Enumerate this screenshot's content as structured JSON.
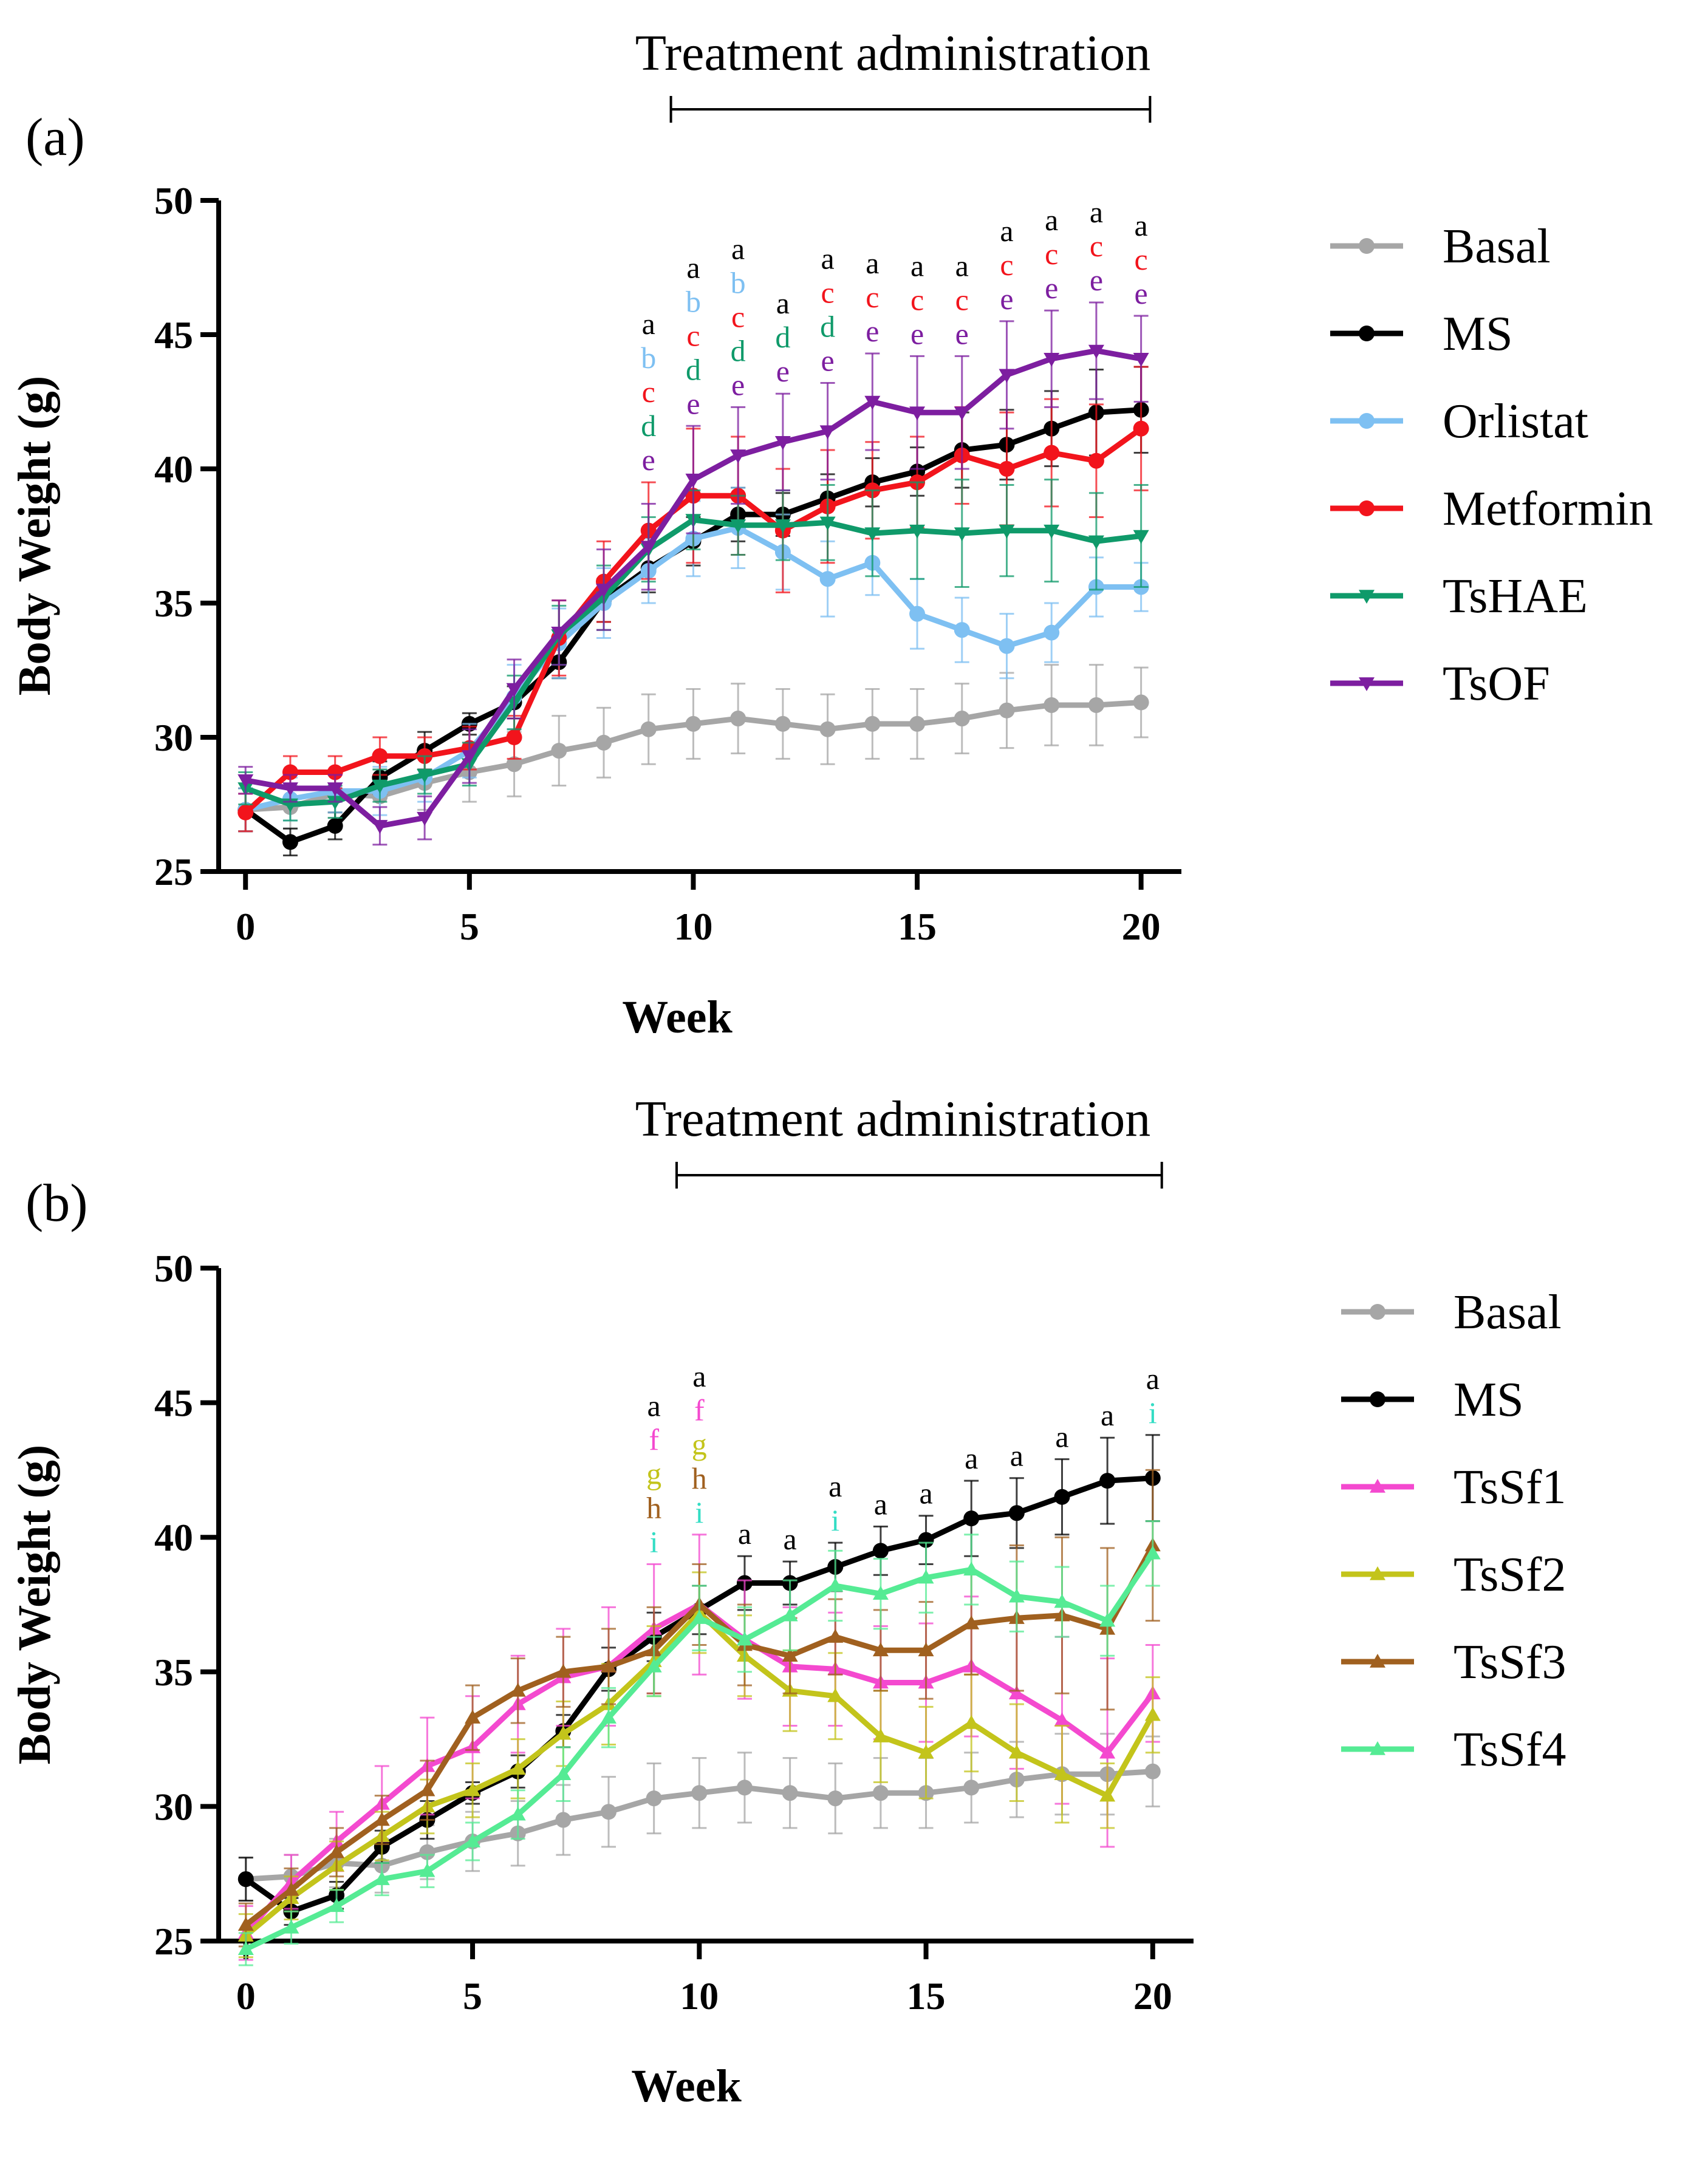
{
  "chart_data": [
    {
      "type": "line",
      "panel_label": "(a)",
      "treatment_label": "Treatment administration",
      "treatment_range": [
        9.5,
        20.2
      ],
      "xlabel": "Week",
      "ylabel": "Body Weight (g)",
      "xlim": [
        -0.6,
        20.9
      ],
      "ylim": [
        25,
        50
      ],
      "xticks": [
        0,
        5,
        10,
        15,
        20
      ],
      "yticks": [
        25,
        30,
        35,
        40,
        45,
        50
      ],
      "x": [
        0,
        1,
        2,
        3,
        4,
        5,
        6,
        7,
        8,
        9,
        10,
        11,
        12,
        13,
        14,
        15,
        16,
        17,
        18,
        19,
        20
      ],
      "series": [
        {
          "name": "Basal",
          "color": "#a6a6a6",
          "marker": "circle",
          "values": [
            27.3,
            27.4,
            27.9,
            27.8,
            28.3,
            28.7,
            29.0,
            29.5,
            29.8,
            30.3,
            30.5,
            30.7,
            30.5,
            30.3,
            30.5,
            30.5,
            30.7,
            31.0,
            31.2,
            31.2,
            31.3
          ],
          "errors": [
            0.8,
            0.8,
            0.9,
            1.0,
            1.0,
            1.1,
            1.2,
            1.3,
            1.3,
            1.3,
            1.3,
            1.3,
            1.3,
            1.3,
            1.3,
            1.3,
            1.3,
            1.4,
            1.5,
            1.5,
            1.3
          ]
        },
        {
          "name": "MS",
          "color": "#000000",
          "marker": "circle",
          "values": [
            27.3,
            26.1,
            26.7,
            28.5,
            29.5,
            30.5,
            31.3,
            32.8,
            35.1,
            36.3,
            37.3,
            38.3,
            38.3,
            38.9,
            39.5,
            39.9,
            40.7,
            40.9,
            41.5,
            42.1,
            42.2
          ],
          "errors": [
            0.8,
            0.5,
            0.5,
            0.6,
            0.7,
            0.4,
            0.6,
            0.6,
            0.8,
            0.9,
            0.9,
            1.0,
            0.8,
            0.9,
            0.9,
            0.9,
            1.4,
            1.3,
            1.4,
            1.6,
            1.6
          ]
        },
        {
          "name": "Orlistat",
          "color": "#7ec0f2",
          "marker": "circle",
          "values": [
            27.3,
            27.7,
            28.0,
            28.0,
            28.5,
            29.5,
            31.5,
            33.5,
            35.0,
            36.2,
            37.4,
            37.8,
            36.9,
            35.9,
            36.5,
            34.6,
            34.0,
            33.4,
            33.9,
            35.6,
            35.6
          ],
          "errors": [
            0.8,
            0.8,
            0.8,
            0.9,
            0.9,
            1.0,
            1.2,
            1.3,
            1.3,
            1.2,
            1.4,
            1.5,
            1.4,
            1.4,
            1.2,
            1.3,
            1.2,
            1.2,
            1.1,
            1.1,
            0.9
          ]
        },
        {
          "name": "Metformin",
          "color": "#f2141c",
          "marker": "circle",
          "values": [
            27.2,
            28.7,
            28.7,
            29.3,
            29.3,
            29.6,
            30.0,
            33.7,
            35.8,
            37.7,
            39.0,
            39.0,
            37.7,
            38.6,
            39.2,
            39.5,
            40.5,
            40.0,
            40.6,
            40.3,
            41.5
          ],
          "errors": [
            0.7,
            0.6,
            0.6,
            0.7,
            0.7,
            0.8,
            0.8,
            1.4,
            1.5,
            1.8,
            2.5,
            2.2,
            2.3,
            2.1,
            1.8,
            1.7,
            1.8,
            2.1,
            2.0,
            2.1,
            2.3
          ]
        },
        {
          "name": "TsHAE",
          "color": "#0f9a6a",
          "marker": "triangle-down",
          "values": [
            28.1,
            27.5,
            27.6,
            28.2,
            28.6,
            29.0,
            31.3,
            33.8,
            35.2,
            37.0,
            38.1,
            37.9,
            37.9,
            38.0,
            37.6,
            37.7,
            37.6,
            37.7,
            37.7,
            37.3,
            37.5
          ],
          "errors": [
            0.6,
            0.6,
            0.6,
            0.6,
            0.7,
            0.8,
            1.0,
            1.1,
            1.2,
            1.2,
            1.1,
            1.1,
            1.3,
            1.4,
            1.6,
            1.8,
            2.0,
            1.7,
            1.9,
            1.8,
            1.9
          ]
        },
        {
          "name": "TsOF",
          "color": "#7d1ea0",
          "marker": "triangle-down",
          "values": [
            28.4,
            28.1,
            28.1,
            26.7,
            27.0,
            29.3,
            31.8,
            33.9,
            35.5,
            37.1,
            39.6,
            40.5,
            41.0,
            41.4,
            42.5,
            42.1,
            42.1,
            43.5,
            44.1,
            44.4,
            44.1
          ],
          "errors": [
            0.5,
            0.5,
            0.5,
            0.7,
            0.8,
            1.0,
            1.1,
            1.2,
            1.5,
            1.6,
            2.0,
            1.8,
            1.8,
            1.8,
            1.8,
            2.1,
            2.1,
            2.0,
            1.8,
            1.8,
            1.6
          ]
        }
      ],
      "significance": [
        {
          "x": 9,
          "letters": [
            "a",
            "b",
            "c",
            "d",
            "e"
          ]
        },
        {
          "x": 10,
          "letters": [
            "a",
            "b",
            "c",
            "d",
            "e"
          ]
        },
        {
          "x": 11,
          "letters": [
            "a",
            "b",
            "c",
            "d",
            "e"
          ]
        },
        {
          "x": 12,
          "letters": [
            "a",
            "d",
            "e"
          ]
        },
        {
          "x": 13,
          "letters": [
            "a",
            "c",
            "d",
            "e"
          ]
        },
        {
          "x": 14,
          "letters": [
            "a",
            "c",
            "e"
          ]
        },
        {
          "x": 15,
          "letters": [
            "a",
            "c",
            "e"
          ]
        },
        {
          "x": 16,
          "letters": [
            "a",
            "c",
            "e"
          ]
        },
        {
          "x": 17,
          "letters": [
            "a",
            "c",
            "e"
          ]
        },
        {
          "x": 18,
          "letters": [
            "a",
            "c",
            "e"
          ]
        },
        {
          "x": 19,
          "letters": [
            "a",
            "c",
            "e"
          ]
        },
        {
          "x": 20,
          "letters": [
            "a",
            "c",
            "e"
          ]
        }
      ],
      "letter_colors": {
        "a": "#000000",
        "b": "#7ec0f2",
        "c": "#f2141c",
        "d": "#0f9a6a",
        "e": "#7d1ea0"
      }
    },
    {
      "type": "line",
      "panel_label": "(b)",
      "treatment_label": "Treatment administration",
      "treatment_range": [
        9.5,
        20.2
      ],
      "xlabel": "Week",
      "ylabel": "Body Weight (g)",
      "xlim": [
        -0.6,
        20.9
      ],
      "ylim": [
        25,
        50
      ],
      "xticks": [
        0,
        5,
        10,
        15,
        20
      ],
      "yticks": [
        25,
        30,
        35,
        40,
        45,
        50
      ],
      "x": [
        0,
        1,
        2,
        3,
        4,
        5,
        6,
        7,
        8,
        9,
        10,
        11,
        12,
        13,
        14,
        15,
        16,
        17,
        18,
        19,
        20
      ],
      "series": [
        {
          "name": "Basal",
          "color": "#a6a6a6",
          "marker": "circle",
          "values": [
            27.3,
            27.4,
            27.9,
            27.8,
            28.3,
            28.7,
            29.0,
            29.5,
            29.8,
            30.3,
            30.5,
            30.7,
            30.5,
            30.3,
            30.5,
            30.5,
            30.7,
            31.0,
            31.2,
            31.2,
            31.3
          ],
          "errors": [
            0.8,
            0.8,
            0.9,
            1.0,
            1.0,
            1.1,
            1.2,
            1.3,
            1.3,
            1.3,
            1.3,
            1.3,
            1.3,
            1.3,
            1.3,
            1.3,
            1.3,
            1.4,
            1.5,
            1.5,
            1.3
          ]
        },
        {
          "name": "MS",
          "color": "#000000",
          "marker": "circle",
          "values": [
            27.3,
            26.1,
            26.7,
            28.5,
            29.5,
            30.5,
            31.3,
            32.8,
            35.1,
            36.3,
            37.3,
            38.3,
            38.3,
            38.9,
            39.5,
            39.9,
            40.7,
            40.9,
            41.5,
            42.1,
            42.2
          ],
          "errors": [
            0.8,
            0.5,
            0.5,
            0.6,
            0.7,
            0.4,
            0.6,
            0.6,
            0.8,
            0.9,
            0.9,
            1.0,
            0.8,
            0.9,
            0.9,
            0.9,
            1.4,
            1.3,
            1.4,
            1.6,
            1.6
          ]
        },
        {
          "name": "TsSf1",
          "color": "#f449cf",
          "marker": "triangle-up",
          "values": [
            25.3,
            27.2,
            28.7,
            30.1,
            31.5,
            32.2,
            33.8,
            34.8,
            35.2,
            36.6,
            37.5,
            36.2,
            35.2,
            35.1,
            34.6,
            34.6,
            35.2,
            34.2,
            33.2,
            32.0,
            34.2
          ],
          "errors": [
            1.0,
            1.0,
            1.1,
            1.4,
            1.8,
            1.9,
            1.8,
            1.8,
            2.2,
            2.4,
            2.6,
            2.2,
            2.2,
            2.1,
            2.1,
            2.2,
            2.6,
            2.8,
            3.1,
            3.5,
            1.8
          ]
        },
        {
          "name": "TsSf2",
          "color": "#c3c41b",
          "marker": "triangle-up",
          "values": [
            25.2,
            26.6,
            27.8,
            28.9,
            30.0,
            30.6,
            31.4,
            32.7,
            33.8,
            35.4,
            37.2,
            35.6,
            34.3,
            34.1,
            32.6,
            32.0,
            33.1,
            32.0,
            31.2,
            30.4,
            33.4
          ],
          "errors": [
            0.8,
            0.8,
            0.9,
            0.9,
            1.0,
            1.0,
            1.1,
            1.2,
            1.5,
            1.3,
            1.5,
            1.5,
            1.5,
            1.6,
            1.7,
            1.7,
            1.8,
            1.8,
            1.8,
            1.2,
            1.4
          ]
        },
        {
          "name": "TsSf3",
          "color": "#a0601f",
          "marker": "triangle-up",
          "values": [
            25.6,
            26.9,
            28.3,
            29.5,
            30.6,
            33.3,
            34.3,
            35.0,
            35.2,
            35.8,
            37.5,
            36.0,
            35.6,
            36.3,
            35.8,
            35.8,
            36.8,
            37.0,
            37.1,
            36.6,
            39.7
          ],
          "errors": [
            0.8,
            0.8,
            0.9,
            0.9,
            1.1,
            1.2,
            1.2,
            1.3,
            1.4,
            1.6,
            1.5,
            1.5,
            1.4,
            1.4,
            1.5,
            1.8,
            1.9,
            2.7,
            2.9,
            3.0,
            2.8
          ]
        },
        {
          "name": "TsSf4",
          "color": "#55eb94",
          "marker": "triangle-up",
          "values": [
            24.7,
            25.5,
            26.3,
            27.3,
            27.6,
            28.7,
            29.7,
            31.2,
            33.3,
            35.2,
            37.0,
            36.2,
            37.1,
            38.2,
            37.9,
            38.5,
            38.8,
            37.8,
            37.6,
            36.9,
            39.4
          ],
          "errors": [
            0.6,
            0.6,
            0.6,
            0.6,
            0.6,
            0.7,
            0.9,
            1.0,
            1.1,
            1.1,
            1.2,
            1.2,
            1.3,
            1.3,
            1.3,
            1.3,
            1.3,
            1.3,
            1.3,
            1.3,
            1.2
          ]
        }
      ],
      "significance": [
        {
          "x": 9,
          "letters": [
            "a",
            "f",
            "g",
            "h",
            "i"
          ]
        },
        {
          "x": 10,
          "letters": [
            "a",
            "f",
            "g",
            "h",
            "i"
          ]
        },
        {
          "x": 11,
          "letters": [
            "a"
          ]
        },
        {
          "x": 12,
          "letters": [
            "a"
          ]
        },
        {
          "x": 13,
          "letters": [
            "a",
            "i"
          ]
        },
        {
          "x": 14,
          "letters": [
            "a"
          ]
        },
        {
          "x": 15,
          "letters": [
            "a"
          ]
        },
        {
          "x": 16,
          "letters": [
            "a"
          ]
        },
        {
          "x": 17,
          "letters": [
            "a"
          ]
        },
        {
          "x": 18,
          "letters": [
            "a"
          ]
        },
        {
          "x": 19,
          "letters": [
            "a"
          ]
        },
        {
          "x": 20,
          "letters": [
            "a",
            "i"
          ]
        }
      ],
      "letter_colors": {
        "a": "#000000",
        "f": "#f449cf",
        "g": "#c3c41b",
        "h": "#a0601f",
        "i": "#33ddc4"
      }
    }
  ]
}
